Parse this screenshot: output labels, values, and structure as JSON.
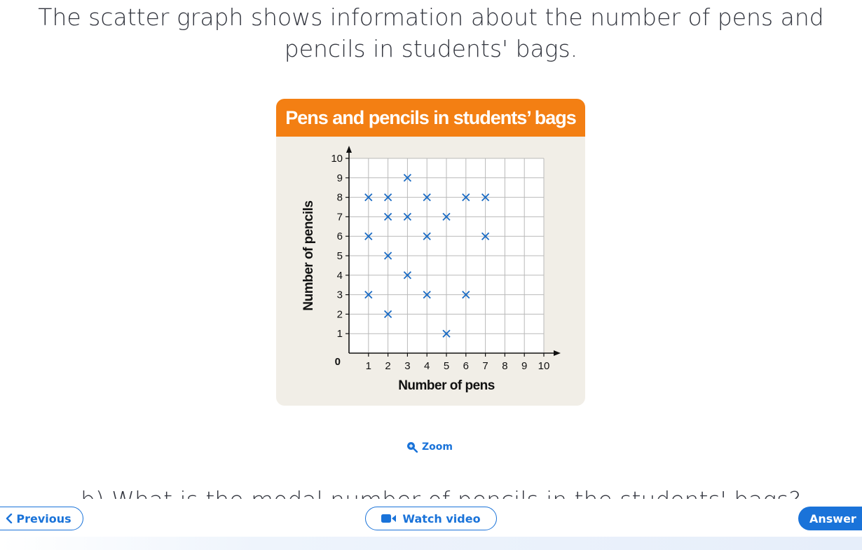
{
  "question": {
    "line1": "The scatter graph shows information about the number of pens and",
    "line2": "pencils in students' bags."
  },
  "chart_data": {
    "type": "scatter",
    "title": "Pens and pencils in students’ bags",
    "xlabel": "Number of pens",
    "ylabel": "Number of pencils",
    "xlim": [
      0,
      10
    ],
    "ylim": [
      0,
      10
    ],
    "x_ticks": [
      "1",
      "2",
      "3",
      "4",
      "5",
      "6",
      "7",
      "8",
      "9",
      "10"
    ],
    "y_ticks": [
      "1",
      "2",
      "3",
      "4",
      "5",
      "6",
      "7",
      "8",
      "9",
      "10"
    ],
    "origin_label": "0",
    "grid": true,
    "marker": "cross",
    "marker_color": "#1a6bc4",
    "points": [
      {
        "x": 1,
        "y": 8
      },
      {
        "x": 1,
        "y": 6
      },
      {
        "x": 1,
        "y": 3
      },
      {
        "x": 2,
        "y": 8
      },
      {
        "x": 2,
        "y": 7
      },
      {
        "x": 2,
        "y": 5
      },
      {
        "x": 2,
        "y": 2
      },
      {
        "x": 3,
        "y": 9
      },
      {
        "x": 3,
        "y": 7
      },
      {
        "x": 3,
        "y": 4
      },
      {
        "x": 4,
        "y": 8
      },
      {
        "x": 4,
        "y": 6
      },
      {
        "x": 4,
        "y": 3
      },
      {
        "x": 5,
        "y": 7
      },
      {
        "x": 5,
        "y": 1
      },
      {
        "x": 6,
        "y": 8
      },
      {
        "x": 6,
        "y": 3
      },
      {
        "x": 7,
        "y": 8
      },
      {
        "x": 7,
        "y": 6
      }
    ]
  },
  "zoom": {
    "label": "Zoom",
    "icon": "zoom-in-icon"
  },
  "partial_question": "b) What is the modal number of pencils in the students' bags?",
  "nav": {
    "previous_label": "Previous",
    "watch_video_label": "Watch video",
    "answer_label": "Answer"
  },
  "colors": {
    "accent": "#1a73d9",
    "header": "#f37f13",
    "card_bg": "#f1eee7"
  }
}
